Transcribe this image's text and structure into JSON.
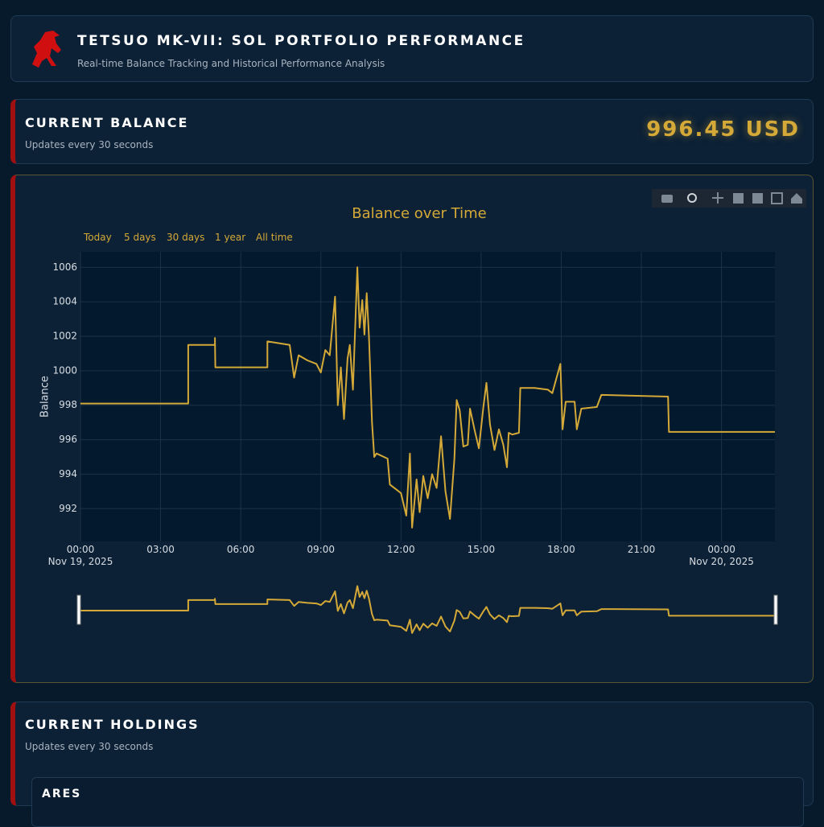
{
  "header": {
    "title": "TETSUO MK-VII: SOL PORTFOLIO PERFORMANCE",
    "subtitle": "Real-time Balance Tracking and Historical Performance Analysis"
  },
  "balance": {
    "title": "CURRENT BALANCE",
    "subtitle": "Updates every 30 seconds",
    "value": "996.45 USD"
  },
  "chart_data": {
    "type": "line",
    "title": "Balance over Time",
    "y_label": "Balance",
    "range_buttons": [
      "Today",
      "5 days",
      "30 days",
      "1 year",
      "All time"
    ],
    "color": "#d4a937",
    "grid": true,
    "x": [
      "2025-11-19T00:00",
      "2025-11-19T04:02",
      "2025-11-19T04:02",
      "2025-11-19T05:02",
      "2025-11-19T05:02",
      "2025-11-19T05:03",
      "2025-11-19T07:00",
      "2025-11-19T07:00",
      "2025-11-19T07:50",
      "2025-11-19T08:00",
      "2025-11-19T08:10",
      "2025-11-19T08:30",
      "2025-11-19T08:50",
      "2025-11-19T09:00",
      "2025-11-19T09:10",
      "2025-11-19T09:20",
      "2025-11-19T09:32",
      "2025-11-19T09:38",
      "2025-11-19T09:45",
      "2025-11-19T09:52",
      "2025-11-19T10:00",
      "2025-11-19T10:05",
      "2025-11-19T10:12",
      "2025-11-19T10:22",
      "2025-11-19T10:27",
      "2025-11-19T10:33",
      "2025-11-19T10:38",
      "2025-11-19T10:43",
      "2025-11-19T10:48",
      "2025-11-19T10:55",
      "2025-11-19T11:00",
      "2025-11-19T11:05",
      "2025-11-19T11:30",
      "2025-11-19T11:35",
      "2025-11-19T11:50",
      "2025-11-19T12:00",
      "2025-11-19T12:12",
      "2025-11-19T12:20",
      "2025-11-19T12:25",
      "2025-11-19T12:35",
      "2025-11-19T12:42",
      "2025-11-19T12:50",
      "2025-11-19T13:00",
      "2025-11-19T13:10",
      "2025-11-19T13:20",
      "2025-11-19T13:30",
      "2025-11-19T13:40",
      "2025-11-19T13:50",
      "2025-11-19T14:00",
      "2025-11-19T14:05",
      "2025-11-19T14:12",
      "2025-11-19T14:20",
      "2025-11-19T14:30",
      "2025-11-19T14:35",
      "2025-11-19T14:45",
      "2025-11-19T14:55",
      "2025-11-19T15:05",
      "2025-11-19T15:12",
      "2025-11-19T15:20",
      "2025-11-19T15:30",
      "2025-11-19T15:40",
      "2025-11-19T15:50",
      "2025-11-19T15:58",
      "2025-11-19T16:02",
      "2025-11-19T16:10",
      "2025-11-19T16:25",
      "2025-11-19T16:28",
      "2025-11-19T17:00",
      "2025-11-19T17:30",
      "2025-11-19T17:40",
      "2025-11-19T17:58",
      "2025-11-19T18:03",
      "2025-11-19T18:10",
      "2025-11-19T18:30",
      "2025-11-19T18:35",
      "2025-11-19T18:45",
      "2025-11-19T19:20",
      "2025-11-19T19:30",
      "2025-11-19T22:00",
      "2025-11-19T22:02",
      "2025-11-20T02:00"
    ],
    "values": [
      998.1,
      998.1,
      1001.5,
      1001.5,
      1001.9,
      1000.2,
      1000.2,
      1001.7,
      1001.5,
      999.6,
      1000.9,
      1000.6,
      1000.4,
      999.9,
      1001.2,
      1000.9,
      1004.3,
      998.0,
      1000.2,
      997.2,
      1000.7,
      1001.5,
      998.9,
      1006.0,
      1002.5,
      1004.1,
      1002.1,
      1004.5,
      1002.0,
      997.0,
      995.0,
      995.2,
      994.9,
      993.4,
      993.1,
      992.9,
      991.6,
      995.2,
      990.9,
      993.7,
      991.8,
      993.9,
      992.6,
      994.0,
      993.2,
      996.2,
      993.0,
      991.4,
      994.9,
      998.3,
      997.7,
      995.6,
      995.7,
      997.8,
      996.6,
      995.5,
      997.9,
      999.3,
      996.9,
      995.4,
      996.6,
      995.7,
      994.4,
      996.4,
      996.3,
      996.4,
      999.0,
      999.0,
      998.9,
      998.7,
      1000.4,
      996.6,
      998.2,
      998.2,
      996.6,
      997.8,
      997.9,
      998.6,
      998.5,
      996.45,
      996.45
    ],
    "xlim": [
      "2025-11-19T00:00",
      "2025-11-20T02:00"
    ],
    "xticks": [
      {
        "value": "2025-11-19T00:00",
        "label": "00:00\nNov 19, 2025"
      },
      {
        "value": "2025-11-19T03:00",
        "label": "03:00"
      },
      {
        "value": "2025-11-19T06:00",
        "label": "06:00"
      },
      {
        "value": "2025-11-19T09:00",
        "label": "09:00"
      },
      {
        "value": "2025-11-19T12:00",
        "label": "12:00"
      },
      {
        "value": "2025-11-19T15:00",
        "label": "15:00"
      },
      {
        "value": "2025-11-19T18:00",
        "label": "18:00"
      },
      {
        "value": "2025-11-19T21:00",
        "label": "21:00"
      },
      {
        "value": "2025-11-20T00:00",
        "label": "00:00\nNov 20, 2025"
      }
    ],
    "ylim": [
      990.1,
      1006.9
    ],
    "yticks": [
      992,
      994,
      996,
      998,
      1000,
      1002,
      1004,
      1006
    ]
  },
  "holdings": {
    "title": "CURRENT HOLDINGS",
    "subtitle": "Updates every 30 seconds",
    "items": [
      {
        "name": "ARES"
      }
    ]
  }
}
